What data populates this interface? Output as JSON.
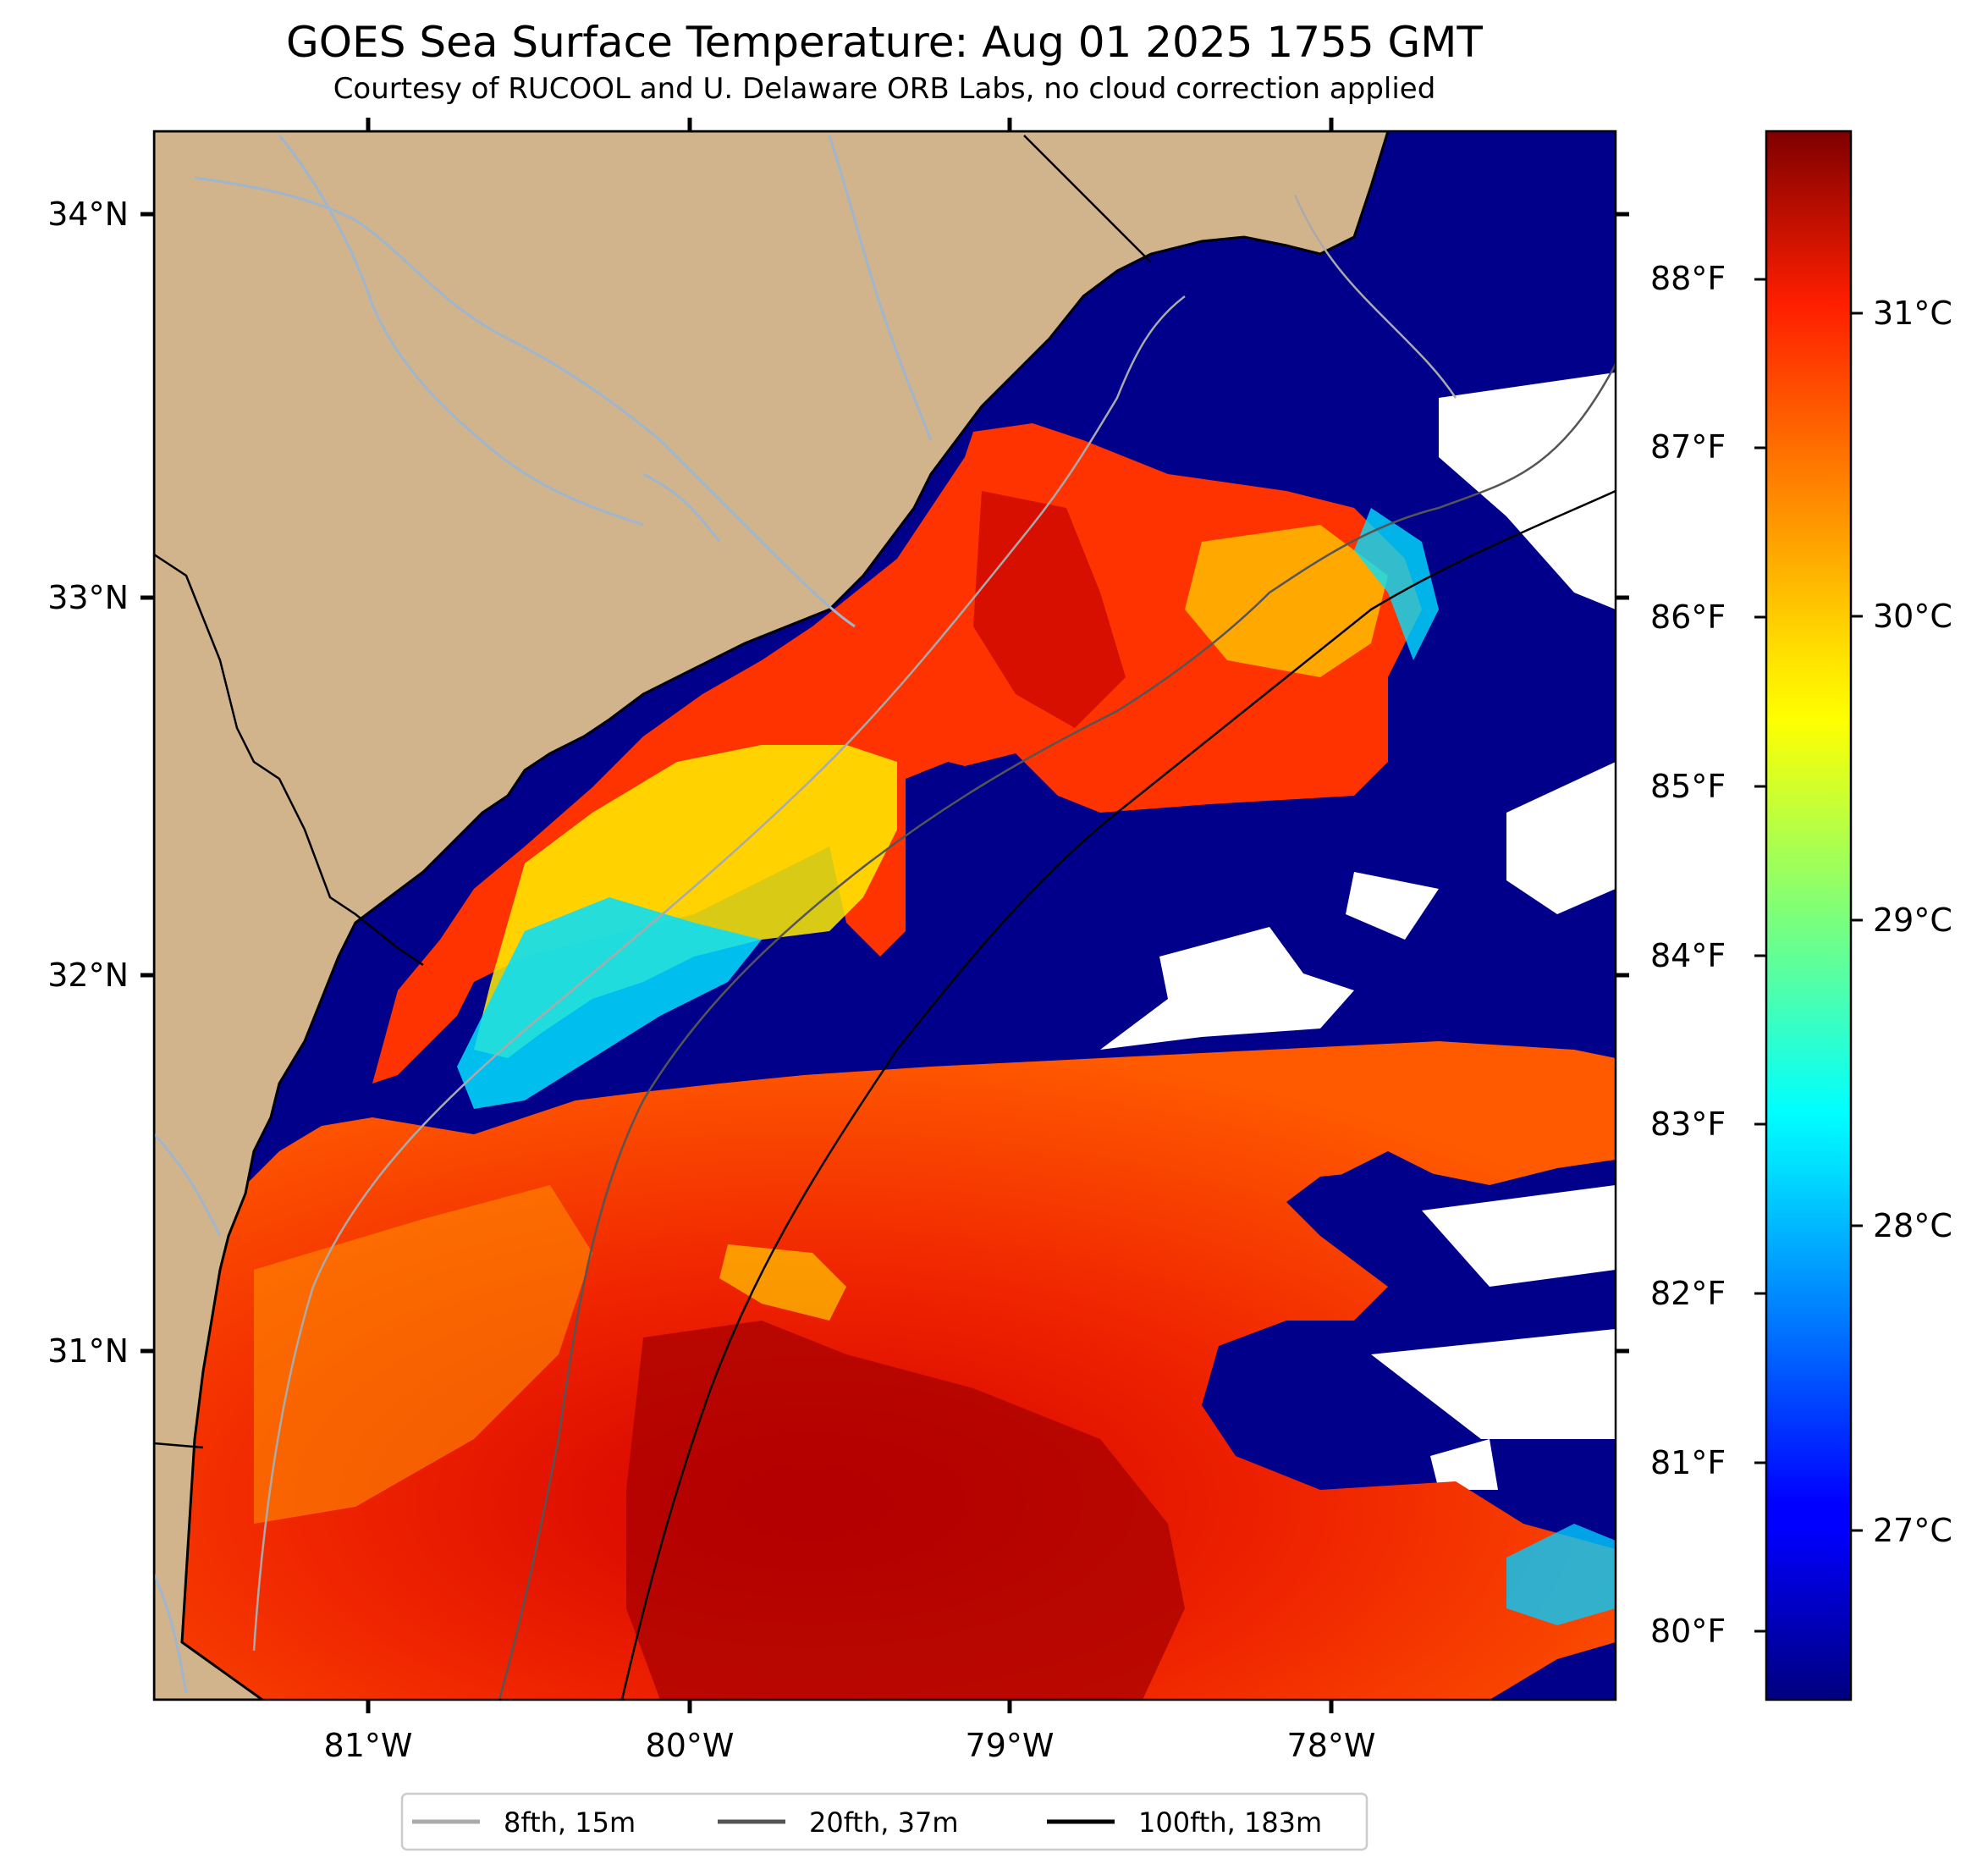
{
  "title": "GOES Sea Surface Temperature: Aug 01 2025 1755 GMT",
  "subtitle": "Courtesy of RUCOOL and U. Delaware ORB Labs, no cloud correction applied",
  "lon_ticks": [
    "81°W",
    "80°W",
    "79°W",
    "78°W"
  ],
  "lat_ticks": [
    "34°N",
    "33°N",
    "32°N",
    "31°N"
  ],
  "fahrenheit_ticks": [
    "88°F",
    "87°F",
    "86°F",
    "85°F",
    "84°F",
    "83°F",
    "82°F",
    "81°F",
    "80°F"
  ],
  "celsius_ticks": [
    "31°C",
    "30°C",
    "29°C",
    "28°C",
    "27°C"
  ],
  "legend": [
    {
      "label": "8fth, 15m",
      "color": "#aaaaaa"
    },
    {
      "label": "20fth, 37m",
      "color": "#555555"
    },
    {
      "label": "100fth, 183m",
      "color": "#000000"
    }
  ],
  "colors": {
    "land": "#d2b48c",
    "cold_water": "#00008b",
    "clouds": "#ffffff",
    "rivers": "#9fb6cd"
  }
}
